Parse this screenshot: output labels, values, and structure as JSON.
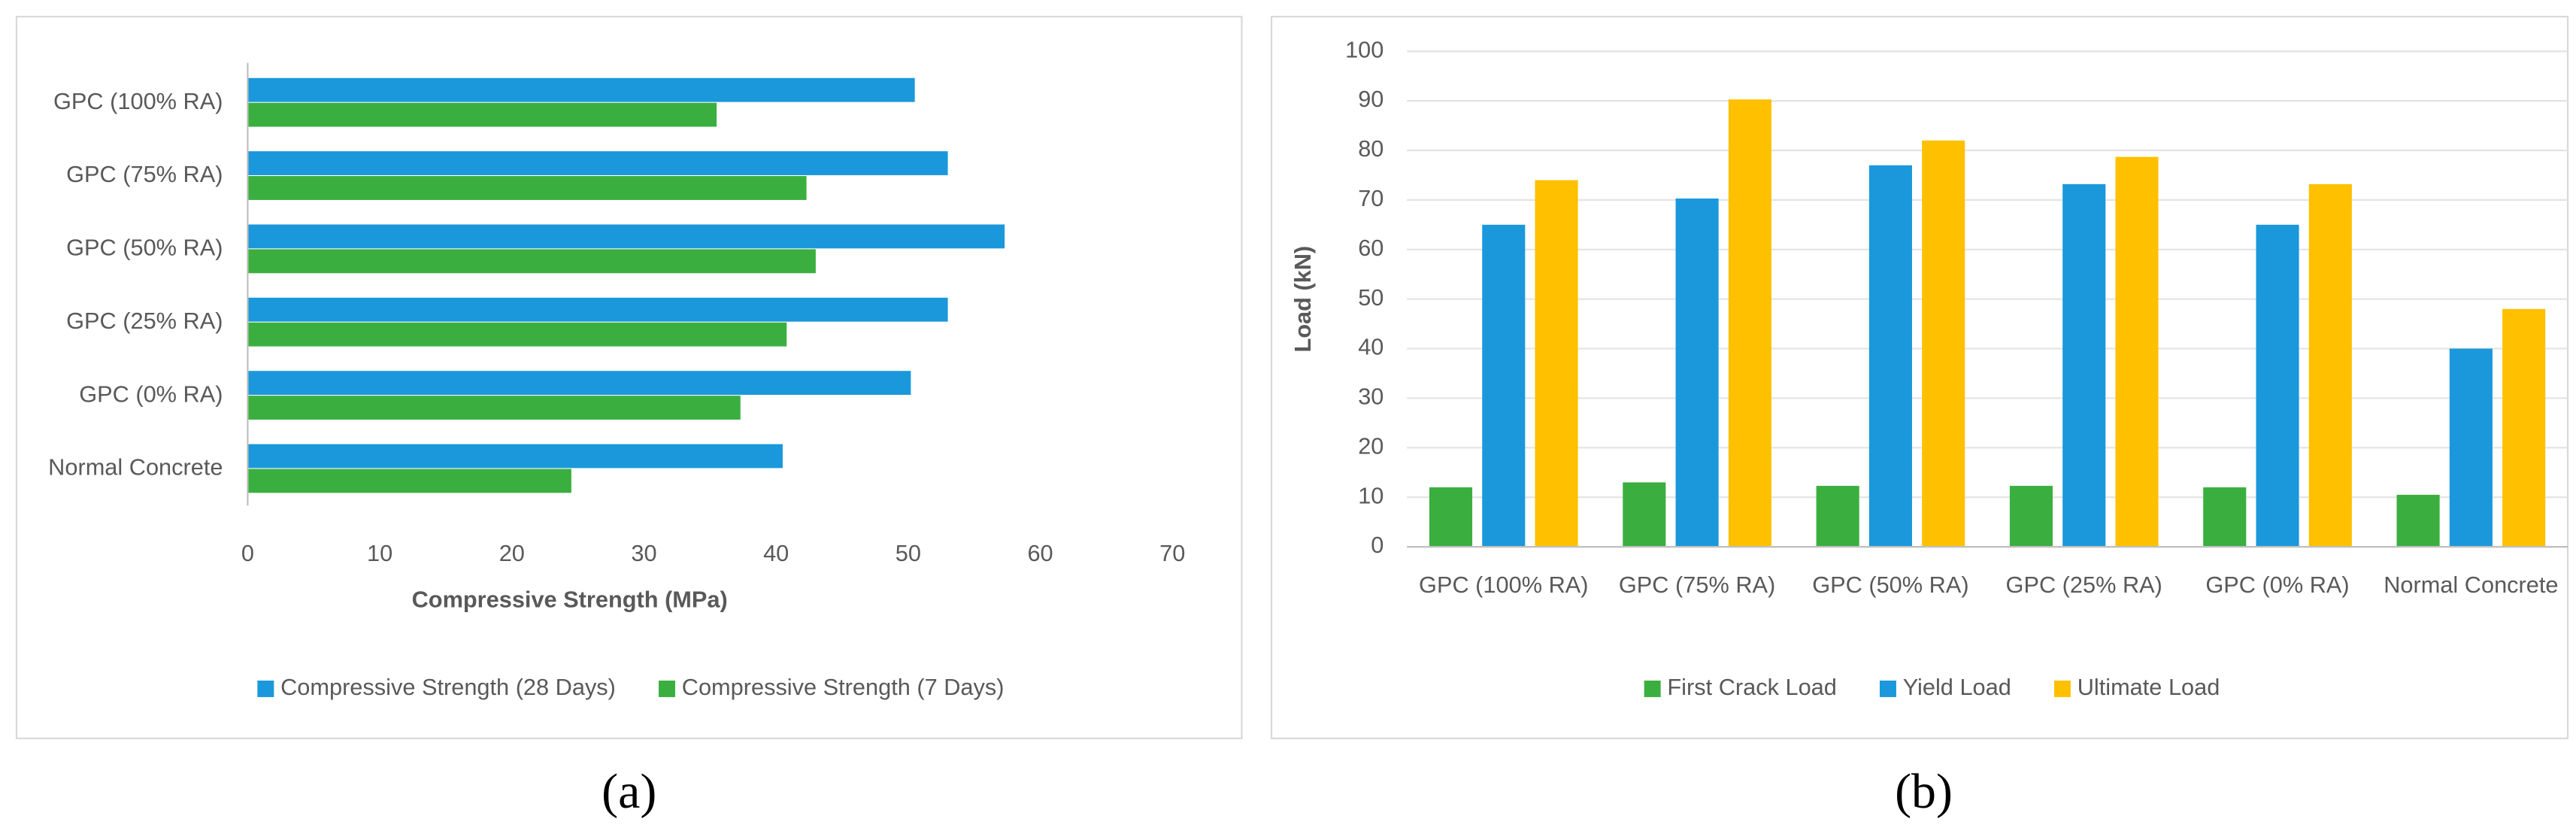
{
  "chart_data": [
    {
      "type": "barh",
      "caption": "(a)",
      "categories": [
        "GPC (100% RA)",
        "GPC (75% RA)",
        "GPC (50% RA)",
        "GPC (25% RA)",
        "GPC (0% RA)",
        "Normal Concrete"
      ],
      "series": [
        {
          "name": "Compressive Strength (28 Days)",
          "color": "#1b98db",
          "values": [
            50.5,
            53,
            57.3,
            53,
            50.2,
            40.5
          ]
        },
        {
          "name": "Compressive Strength (7 Days)",
          "color": "#3aaf3f",
          "values": [
            35.5,
            42.3,
            43,
            40.8,
            37.3,
            24.5
          ]
        }
      ],
      "xlabel": "Compressive Strength (MPa)",
      "xlim": [
        0,
        70
      ],
      "xticks": [
        0,
        10,
        20,
        30,
        40,
        50,
        60,
        70
      ],
      "grid": false,
      "legend": "bottom"
    },
    {
      "type": "bar",
      "caption": "(b)",
      "categories": [
        "GPC (100% RA)",
        "GPC (75% RA)",
        "GPC (50% RA)",
        "GPC (25% RA)",
        "GPC (0% RA)",
        "Normal Concrete"
      ],
      "series": [
        {
          "name": "First Crack Load",
          "color": "#3aaf3f",
          "values": [
            12,
            13,
            12.3,
            12.3,
            12,
            10.5
          ]
        },
        {
          "name": "Yield Load",
          "color": "#1b98db",
          "values": [
            65,
            70.3,
            77,
            73.2,
            65,
            40
          ]
        },
        {
          "name": "Ultimate Load",
          "color": "#ffc000",
          "values": [
            74,
            90.3,
            82,
            78.7,
            73.2,
            48
          ]
        }
      ],
      "ylabel": "Load (kN)",
      "ylim": [
        0,
        100
      ],
      "yticks": [
        0,
        10,
        20,
        30,
        40,
        50,
        60,
        70,
        80,
        90,
        100
      ],
      "grid": true,
      "legend": "bottom"
    }
  ]
}
